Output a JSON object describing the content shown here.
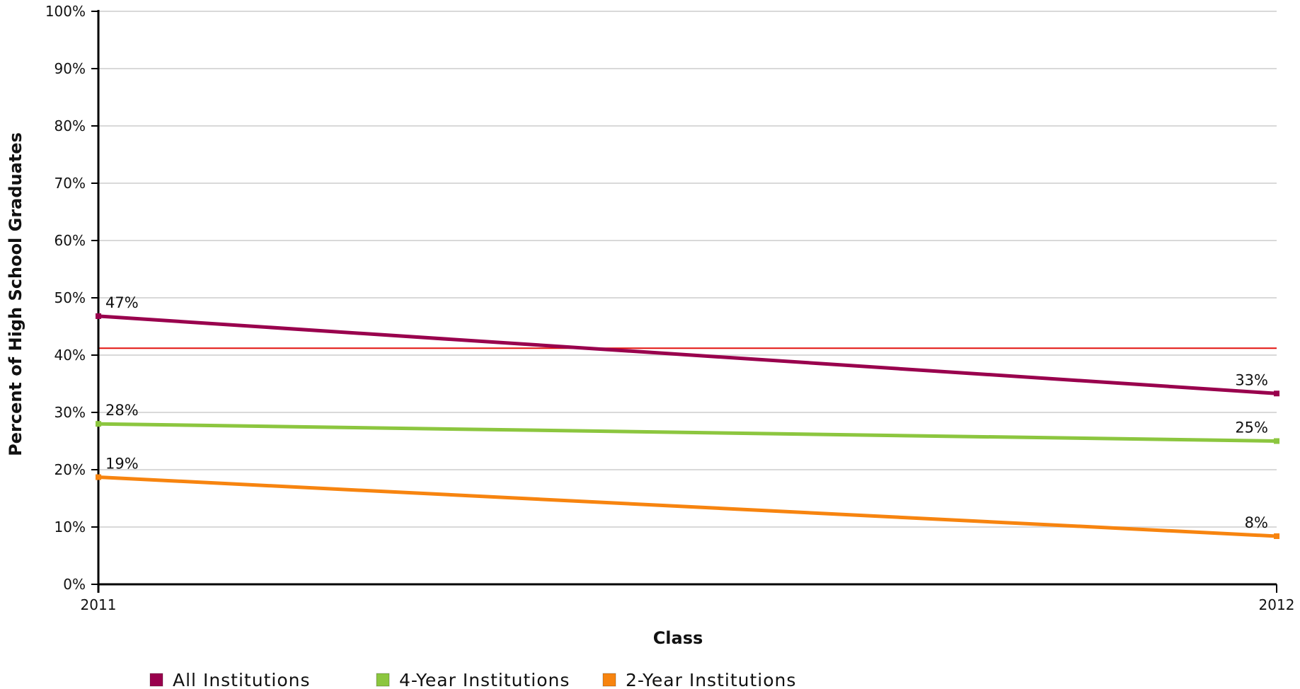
{
  "chart_data": {
    "type": "line",
    "xlabel": "Class",
    "ylabel": "Percent of High School Graduates",
    "x": [
      "2011",
      "2012"
    ],
    "ylim": [
      0,
      100
    ],
    "yticks": [
      "0%",
      "10%",
      "20%",
      "30%",
      "40%",
      "50%",
      "60%",
      "70%",
      "80%",
      "90%",
      "100%"
    ],
    "grid": true,
    "legend_position": "bottom-left",
    "reference_line": {
      "value": 41.2,
      "color": "#e3130f"
    },
    "series": [
      {
        "name": "All Institutions",
        "color": "#99004d",
        "values": [
          46.8,
          33.3
        ],
        "labels": [
          "47%",
          "33%"
        ]
      },
      {
        "name": "4-Year Institutions",
        "color": "#8cc63f",
        "values": [
          28.0,
          25.0
        ],
        "labels": [
          "28%",
          "25%"
        ]
      },
      {
        "name": "2-Year Institutions",
        "color": "#f7840f",
        "values": [
          18.7,
          8.4
        ],
        "labels": [
          "19%",
          "8%"
        ]
      }
    ]
  }
}
